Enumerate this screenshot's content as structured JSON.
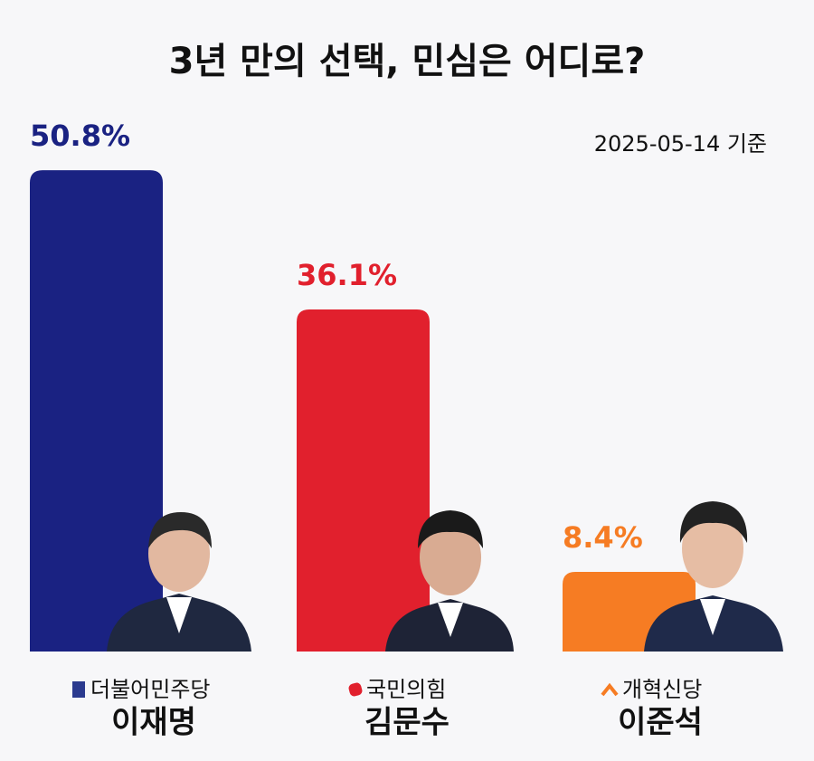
{
  "chart_data": {
    "type": "bar",
    "title": "3년 만의 선택, 민심은 어디로?",
    "subtitle": "2025-05-14 기준",
    "categories": [
      "이재명",
      "김문수",
      "이준석"
    ],
    "parties": [
      "더불어민주당",
      "국민의힘",
      "개혁신당"
    ],
    "values": [
      50.8,
      36.1,
      8.4
    ],
    "value_labels": [
      "50.8%",
      "36.1%",
      "8.4%"
    ],
    "colors": [
      "#1a2282",
      "#e1202d",
      "#f67c23"
    ]
  }
}
